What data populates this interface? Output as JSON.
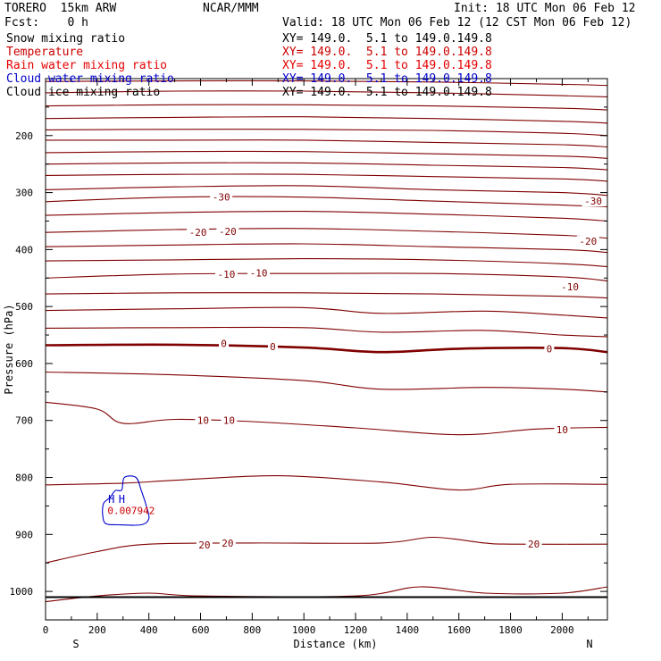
{
  "header": {
    "model": "TORERO  15km ARW",
    "center": "NCAR/MMM",
    "init": "Init: 18 UTC Mon 06 Feb 12",
    "fcst": "Fcst:    0 h",
    "valid": "Valid: 18 UTC Mon 06 Feb 12 (12 CST Mon 06 Feb 12)"
  },
  "legend": [
    {
      "name": "Snow mixing ratio",
      "xy": "XY= 149.0.  5.1 to 149.0.149.8",
      "color": "#000000"
    },
    {
      "name": "Temperature",
      "xy": "XY= 149.0.  5.1 to 149.0.149.8",
      "color": "#cc0000"
    },
    {
      "name": "Rain water mixing ratio",
      "xy": "XY= 149.0.  5.1 to 149.0.149.8",
      "color": "#e60000"
    },
    {
      "name": "Cloud water mixing ratio",
      "xy": "XY= 149.0.  5.1 to 149.0.149.8",
      "color": "#0000cc"
    },
    {
      "name": "Cloud ice mixing ratio",
      "xy": "XY= 149.0.  5.1 to 149.0.149.8",
      "color": "#000000"
    }
  ],
  "chart_data": {
    "type": "line",
    "title": "",
    "xlabel": "Distance (km)",
    "ylabel": "Pressure (hPa)",
    "xlim": [
      0,
      2175
    ],
    "ylim": [
      1050,
      100
    ],
    "x_ticks": [
      0,
      200,
      400,
      600,
      800,
      1000,
      1200,
      1400,
      1600,
      1800,
      2000
    ],
    "y_ticks": [
      200,
      300,
      400,
      500,
      600,
      700,
      800,
      900,
      1000
    ],
    "endpoint_labels": {
      "left": "S",
      "right": "N"
    },
    "temperature_color": "#800000",
    "cloud_water_color": "#0000cc",
    "temperature_isotherms": [
      {
        "points": [
          [
            0,
            105
          ],
          [
            500,
            104
          ],
          [
            1000,
            104
          ],
          [
            1500,
            106
          ],
          [
            2000,
            110
          ],
          [
            2175,
            112
          ]
        ]
      },
      {
        "points": [
          [
            0,
            125
          ],
          [
            500,
            122
          ],
          [
            1000,
            122
          ],
          [
            1500,
            125
          ],
          [
            2000,
            130
          ],
          [
            2175,
            132
          ]
        ]
      },
      {
        "points": [
          [
            0,
            148
          ],
          [
            500,
            146
          ],
          [
            1000,
            146
          ],
          [
            1500,
            148
          ],
          [
            2000,
            152
          ],
          [
            2175,
            155
          ]
        ]
      },
      {
        "points": [
          [
            0,
            170
          ],
          [
            500,
            168
          ],
          [
            1000,
            167
          ],
          [
            1500,
            170
          ],
          [
            2000,
            175
          ],
          [
            2175,
            178
          ]
        ]
      },
      {
        "points": [
          [
            0,
            190
          ],
          [
            500,
            189
          ],
          [
            1000,
            189
          ],
          [
            1500,
            191
          ],
          [
            2000,
            196
          ],
          [
            2175,
            200
          ]
        ]
      },
      {
        "points": [
          [
            0,
            208
          ],
          [
            500,
            208
          ],
          [
            1000,
            208
          ],
          [
            1500,
            212
          ],
          [
            2000,
            216
          ],
          [
            2175,
            220
          ]
        ]
      },
      {
        "points": [
          [
            0,
            230
          ],
          [
            500,
            228
          ],
          [
            1000,
            228
          ],
          [
            1500,
            232
          ],
          [
            2000,
            236
          ],
          [
            2175,
            240
          ]
        ]
      },
      {
        "points": [
          [
            0,
            250
          ],
          [
            500,
            248
          ],
          [
            1000,
            248
          ],
          [
            1500,
            252
          ],
          [
            2000,
            256
          ],
          [
            2175,
            260
          ]
        ]
      },
      {
        "points": [
          [
            0,
            270
          ],
          [
            500,
            268
          ],
          [
            1000,
            268
          ],
          [
            1500,
            272
          ],
          [
            2000,
            276
          ],
          [
            2175,
            280
          ]
        ]
      },
      {
        "points": [
          [
            0,
            295
          ],
          [
            500,
            290
          ],
          [
            1000,
            288
          ],
          [
            1500,
            295
          ],
          [
            2000,
            300
          ],
          [
            2175,
            305
          ]
        ]
      },
      {
        "points": [
          [
            0,
            316
          ],
          [
            500,
            308
          ],
          [
            1000,
            308
          ],
          [
            1500,
            315
          ],
          [
            2000,
            322
          ],
          [
            2175,
            325
          ]
        ],
        "value": "-30"
      },
      {
        "points": [
          [
            0,
            340
          ],
          [
            500,
            335
          ],
          [
            1000,
            333
          ],
          [
            1500,
            338
          ],
          [
            2000,
            345
          ],
          [
            2175,
            350
          ]
        ]
      },
      {
        "points": [
          [
            0,
            370
          ],
          [
            500,
            365
          ],
          [
            1000,
            363
          ],
          [
            1500,
            368
          ],
          [
            2000,
            375
          ],
          [
            2175,
            380
          ]
        ],
        "value": "-20"
      },
      {
        "points": [
          [
            0,
            395
          ],
          [
            500,
            392
          ],
          [
            1000,
            390
          ],
          [
            1500,
            395
          ],
          [
            2000,
            400
          ],
          [
            2175,
            405
          ]
        ]
      },
      {
        "points": [
          [
            0,
            420
          ],
          [
            500,
            418
          ],
          [
            1000,
            416
          ],
          [
            1500,
            418
          ],
          [
            2000,
            425
          ],
          [
            2175,
            430
          ]
        ]
      },
      {
        "points": [
          [
            0,
            450
          ],
          [
            500,
            443
          ],
          [
            1000,
            442
          ],
          [
            1500,
            442
          ],
          [
            2000,
            448
          ],
          [
            2175,
            455
          ]
        ],
        "value": "-10"
      },
      {
        "points": [
          [
            0,
            478
          ],
          [
            500,
            476
          ],
          [
            1000,
            476
          ],
          [
            1500,
            478
          ],
          [
            2000,
            482
          ],
          [
            2175,
            485
          ]
        ]
      },
      {
        "points": [
          [
            0,
            507
          ],
          [
            500,
            504
          ],
          [
            1000,
            502
          ],
          [
            1300,
            512
          ],
          [
            1700,
            508
          ],
          [
            2000,
            515
          ],
          [
            2175,
            520
          ]
        ]
      },
      {
        "points": [
          [
            0,
            538
          ],
          [
            500,
            537
          ],
          [
            1000,
            537
          ],
          [
            1300,
            545
          ],
          [
            1700,
            542
          ],
          [
            2000,
            550
          ],
          [
            2175,
            553
          ]
        ]
      },
      {
        "points": [
          [
            0,
            568
          ],
          [
            500,
            567
          ],
          [
            1000,
            572
          ],
          [
            1300,
            580
          ],
          [
            1600,
            574
          ],
          [
            2000,
            573
          ],
          [
            2175,
            580
          ]
        ],
        "value": "0",
        "emphasis": true
      },
      {
        "points": [
          [
            0,
            615
          ],
          [
            500,
            620
          ],
          [
            1000,
            630
          ],
          [
            1300,
            645
          ],
          [
            1700,
            642
          ],
          [
            2000,
            645
          ],
          [
            2175,
            650
          ]
        ]
      },
      {
        "points": [
          [
            0,
            668
          ],
          [
            200,
            680
          ],
          [
            300,
            705
          ],
          [
            500,
            698
          ],
          [
            800,
            702
          ],
          [
            1200,
            713
          ],
          [
            1600,
            725
          ],
          [
            1900,
            715
          ],
          [
            2175,
            712
          ]
        ],
        "value": "10"
      },
      {
        "points": [
          [
            0,
            813
          ],
          [
            300,
            810
          ],
          [
            500,
            805
          ],
          [
            900,
            797
          ],
          [
            1300,
            808
          ],
          [
            1600,
            822
          ],
          [
            1800,
            812
          ],
          [
            2175,
            812
          ]
        ]
      },
      {
        "points": [
          [
            0,
            950
          ],
          [
            200,
            930
          ],
          [
            400,
            917
          ],
          [
            800,
            915
          ],
          [
            1300,
            915
          ],
          [
            1500,
            905
          ],
          [
            1700,
            915
          ],
          [
            1800,
            917
          ],
          [
            2175,
            917
          ]
        ],
        "value": "20"
      },
      {
        "points": [
          [
            0,
            1018
          ],
          [
            200,
            1008
          ],
          [
            400,
            1003
          ],
          [
            600,
            1008
          ],
          [
            1200,
            1008
          ],
          [
            1450,
            992
          ],
          [
            1700,
            1003
          ],
          [
            2000,
            1003
          ],
          [
            2175,
            992
          ]
        ]
      }
    ],
    "isotherm_labels": [
      {
        "value": "-30",
        "x": 680,
        "p": 308
      },
      {
        "value": "-30",
        "x": 2120,
        "p": 315
      },
      {
        "value": "-20",
        "x": 590,
        "p": 370
      },
      {
        "value": "-20",
        "x": 705,
        "p": 368
      },
      {
        "value": "-20",
        "x": 2100,
        "p": 385
      },
      {
        "value": "-10",
        "x": 700,
        "p": 443
      },
      {
        "value": "-10",
        "x": 825,
        "p": 441
      },
      {
        "value": "-10",
        "x": 2030,
        "p": 465
      },
      {
        "value": "0",
        "x": 690,
        "p": 565
      },
      {
        "value": "0",
        "x": 880,
        "p": 570
      },
      {
        "value": "0",
        "x": 1950,
        "p": 574
      },
      {
        "value": "10",
        "x": 610,
        "p": 700
      },
      {
        "value": "10",
        "x": 710,
        "p": 700
      },
      {
        "value": "10",
        "x": 2000,
        "p": 716
      },
      {
        "value": "20",
        "x": 615,
        "p": 918
      },
      {
        "value": "20",
        "x": 705,
        "p": 915
      },
      {
        "value": "20",
        "x": 1890,
        "p": 917
      }
    ],
    "cloud_water": {
      "outline": [
        [
          220,
          860
        ],
        [
          230,
          880
        ],
        [
          280,
          883
        ],
        [
          370,
          883
        ],
        [
          400,
          872
        ],
        [
          390,
          850
        ],
        [
          370,
          822
        ],
        [
          350,
          800
        ],
        [
          305,
          800
        ],
        [
          295,
          822
        ],
        [
          270,
          823
        ],
        [
          250,
          835
        ],
        [
          225,
          845
        ]
      ],
      "max_markers": [
        {
          "label": "H",
          "x": 255,
          "p": 838
        },
        {
          "label": "H",
          "x": 295,
          "p": 838
        }
      ],
      "max_values": "0.007942"
    },
    "surface_line_p": 1010
  }
}
